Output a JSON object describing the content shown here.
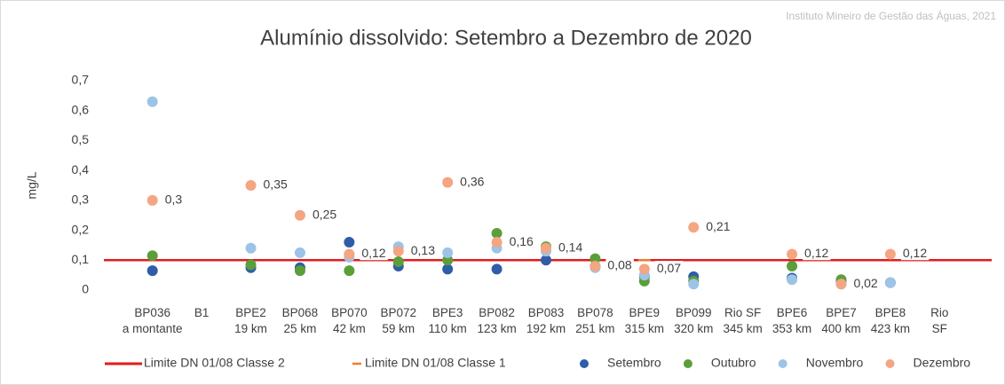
{
  "chart_data": {
    "type": "scatter",
    "title": "Alumínio dissolvido: Setembro a Dezembro de 2020",
    "source": "Instituto Mineiro de Gestão das Águas, 2021",
    "y_label": "mg/L",
    "categories": [
      "BP036\na montante",
      "B1",
      "BPE2\n19 km",
      "BP068\n25 km",
      "BP070\n42 km",
      "BP072\n59 km",
      "BPE3\n110 km",
      "BP082\n123 km",
      "BP083\n192 km",
      "BP078\n251 km",
      "BPE9\n315 km",
      "BP099\n320 km",
      "Rio SF\n345 km",
      "BPE6\n353 km",
      "BPE7\n400 km",
      "BPE8\n423 km",
      "Rio\nSF"
    ],
    "ylim": [
      0,
      0.7
    ],
    "yticks": [
      0,
      {
        "value": 0.1,
        "label": "0,1"
      },
      {
        "value": 0.2,
        "label": "0,2"
      },
      {
        "value": 0.3,
        "label": "0,3"
      },
      {
        "value": 0.4,
        "label": "0,4"
      },
      {
        "value": 0.5,
        "label": "0,5"
      },
      {
        "value": 0.6,
        "label": "0,6"
      },
      {
        "value": 0.7,
        "label": "0,7"
      }
    ],
    "limits": [
      {
        "name": "Limite DN 01/08 Classe 2",
        "color": "#e31a1c",
        "value": 0.1
      },
      {
        "name": "Limite DN 01/08 Classe 1",
        "color": "#ed7d31",
        "value": 0.1,
        "category": "BPE9\n315 km"
      }
    ],
    "series": [
      {
        "name": "Setembro",
        "color": "#2f5ea8",
        "values": [
          0.065,
          null,
          0.075,
          0.075,
          0.16,
          0.08,
          0.07,
          0.07,
          0.1,
          0.08,
          0.045,
          0.045,
          null,
          0.04,
          0.03,
          0.025,
          null
        ]
      },
      {
        "name": "Outubro",
        "color": "#5b9e3a",
        "values": [
          0.115,
          null,
          0.085,
          0.065,
          0.065,
          0.095,
          0.1,
          0.19,
          0.145,
          0.105,
          0.03,
          0.03,
          null,
          0.08,
          0.035,
          null,
          null
        ]
      },
      {
        "name": "Novembro",
        "color": "#9dc3e6",
        "values": [
          0.63,
          null,
          0.14,
          0.125,
          0.11,
          0.145,
          0.125,
          0.14,
          0.13,
          0.075,
          0.05,
          0.02,
          null,
          0.035,
          0.02,
          0.025,
          null
        ]
      },
      {
        "name": "Dezembro",
        "color": "#f4a582",
        "values": [
          0.3,
          null,
          0.35,
          0.25,
          0.12,
          0.13,
          0.36,
          0.16,
          0.14,
          0.08,
          0.07,
          0.21,
          null,
          0.12,
          0.02,
          0.12,
          null
        ],
        "value_labels": [
          "0,3",
          null,
          "0,35",
          "0,25",
          "0,12",
          "0,13",
          "0,36",
          "0,16",
          "0,14",
          "0,08",
          "0,07",
          "0,21",
          null,
          "0,12",
          "0,02",
          "0,12",
          null
        ]
      }
    ]
  }
}
